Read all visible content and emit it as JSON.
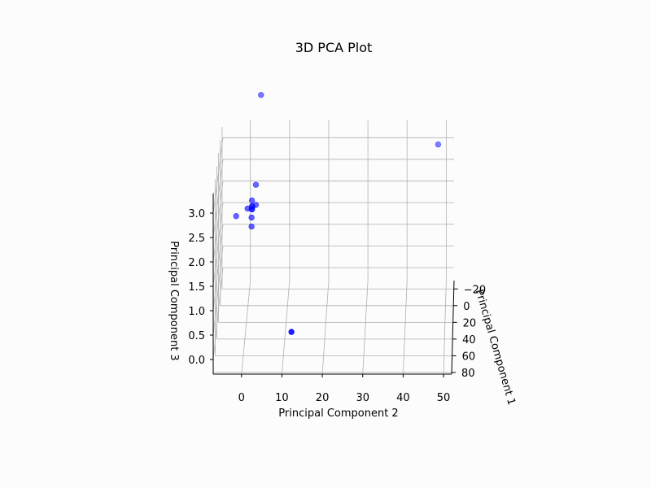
{
  "chart_data": {
    "type": "scatter",
    "title": "3D PCA Plot",
    "xlabel": "Principal Component 1",
    "ylabel": "Principal Component 2",
    "zlabel": "Principal Component 3",
    "grid": true,
    "point_color": "#0000ff",
    "y_ticks": [
      "0",
      "10",
      "20",
      "30",
      "40",
      "50"
    ],
    "x_ticks": [
      "−20",
      "0",
      "20",
      "40",
      "60",
      "80"
    ],
    "z_ticks": [
      "0.0",
      "0.5",
      "1.0",
      "1.5",
      "2.0",
      "2.5",
      "3.0"
    ],
    "xlim": [
      -30,
      82
    ],
    "ylim": [
      -7,
      52
    ],
    "zlim": [
      -0.3,
      3.4
    ],
    "points": [
      {
        "x": -15,
        "y": 3,
        "z": 4.2
      },
      {
        "x": 0,
        "y": 2,
        "z": 2.4
      },
      {
        "x": 0,
        "y": 1,
        "z": 2.05
      },
      {
        "x": 5,
        "y": 0,
        "z": 1.95
      },
      {
        "x": 0,
        "y": 2,
        "z": 1.95
      },
      {
        "x": 0,
        "y": 1,
        "z": 1.92
      },
      {
        "x": 3,
        "y": 1,
        "z": 1.9
      },
      {
        "x": -4,
        "y": 1,
        "z": 1.85
      },
      {
        "x": -2,
        "y": 1,
        "z": 1.82
      },
      {
        "x": 5,
        "y": 1,
        "z": 1.75
      },
      {
        "x": 0,
        "y": -3,
        "z": 1.7
      },
      {
        "x": 5,
        "y": 1,
        "z": 1.55
      },
      {
        "x": 60,
        "y": 12,
        "z": 0.2
      },
      {
        "x": -20,
        "y": 48,
        "z": 3.0
      }
    ]
  }
}
